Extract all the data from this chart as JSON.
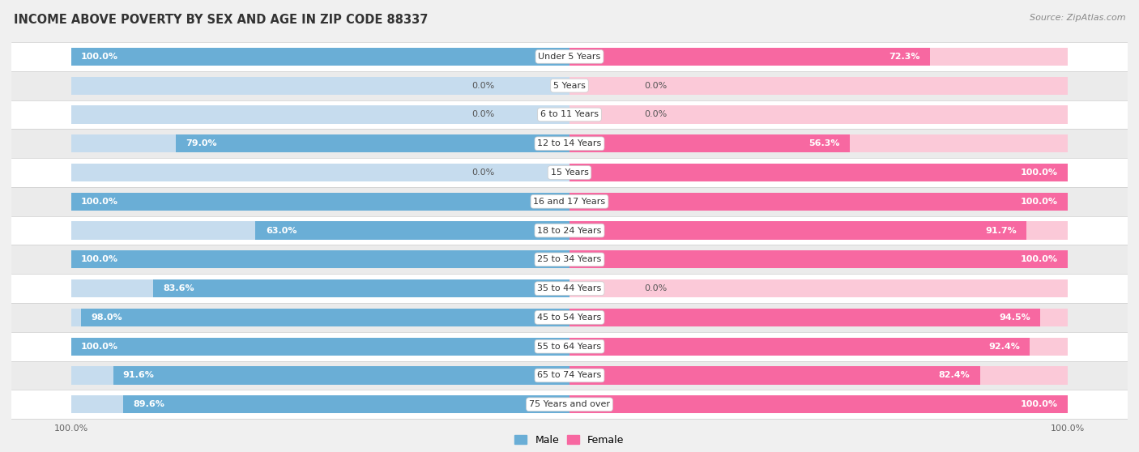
{
  "title": "INCOME ABOVE POVERTY BY SEX AND AGE IN ZIP CODE 88337",
  "source": "Source: ZipAtlas.com",
  "categories": [
    "Under 5 Years",
    "5 Years",
    "6 to 11 Years",
    "12 to 14 Years",
    "15 Years",
    "16 and 17 Years",
    "18 to 24 Years",
    "25 to 34 Years",
    "35 to 44 Years",
    "45 to 54 Years",
    "55 to 64 Years",
    "65 to 74 Years",
    "75 Years and over"
  ],
  "male_values": [
    100.0,
    0.0,
    0.0,
    79.0,
    0.0,
    100.0,
    63.0,
    100.0,
    83.6,
    98.0,
    100.0,
    91.6,
    89.6
  ],
  "female_values": [
    72.3,
    0.0,
    0.0,
    56.3,
    100.0,
    100.0,
    91.7,
    100.0,
    0.0,
    94.5,
    92.4,
    82.4,
    100.0
  ],
  "male_color": "#6aaed6",
  "female_color": "#f768a1",
  "male_bg_color": "#c6dcee",
  "female_bg_color": "#fbc9d8",
  "row_bg_even": "#ffffff",
  "row_bg_odd": "#ebebeb",
  "background_color": "#f0f0f0",
  "title_fontsize": 10.5,
  "source_fontsize": 8,
  "label_fontsize": 8,
  "cat_fontsize": 8,
  "axis_label_fontsize": 8,
  "max_value": 100.0,
  "min_bar_for_inside_label": 15.0
}
